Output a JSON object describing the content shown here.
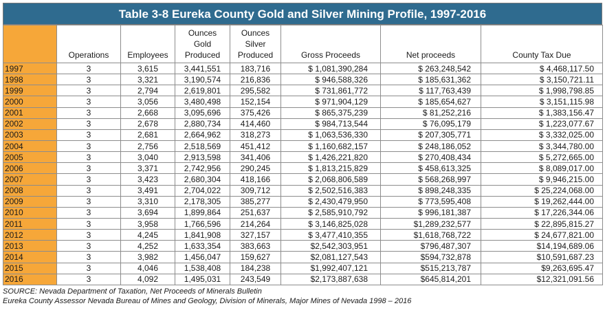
{
  "title": "Table 3-8 Eureka County Gold and Silver Mining Profile, 1997-2016",
  "columns": {
    "year": "",
    "operations": "Operations",
    "employees": "Employees",
    "gold": [
      "Ounces",
      "Gold",
      "Produced"
    ],
    "silver": [
      "Ounces",
      "Silver",
      "Produced"
    ],
    "gross": "Gross Proceeds",
    "net": "Net proceeds",
    "tax": "County Tax Due"
  },
  "rows": [
    [
      "1997",
      "3",
      "3,615",
      "3,441,551",
      "183,716",
      "$ 1,081,390,284",
      "$ 263,248,542",
      "$ 4,468,117.50"
    ],
    [
      "1998",
      "3",
      "3,321",
      "3,190,574",
      "216,836",
      "$ 946,588,326",
      "$ 185,631,362",
      "$ 3,150,721.11"
    ],
    [
      "1999",
      "3",
      "2,794",
      "2,619,801",
      "295,582",
      "$ 731,861,772",
      "$ 117,763,439",
      "$ 1,998,798.85"
    ],
    [
      "2000",
      "3",
      "3,056",
      "3,480,498",
      "152,154",
      "$ 971,904,129",
      "$ 185,654,627",
      "$ 3,151,115.98"
    ],
    [
      "2001",
      "3",
      "2,668",
      "3,095,696",
      "375,426",
      "$ 865,375,239",
      "$ 81,252,216",
      "$ 1,383,156.47"
    ],
    [
      "2002",
      "3",
      "2,678",
      "2,880,734",
      "414,460",
      "$ 984,713,544",
      "$ 76,095,179",
      "$ 1,223,077.67"
    ],
    [
      "2003",
      "3",
      "2,681",
      "2,664,962",
      "318,273",
      "$ 1,063,536,330",
      "$ 207,305,771",
      "$ 3,332,025.00"
    ],
    [
      "2004",
      "3",
      "2,756",
      "2,518,569",
      "451,412",
      "$ 1,160,682,157",
      "$ 248,186,052",
      "$ 3,344,780.00"
    ],
    [
      "2005",
      "3",
      "3,040",
      "2,913,598",
      "341,406",
      "$ 1,426,221,820",
      "$ 270,408,434",
      "$ 5,272,665.00"
    ],
    [
      "2006",
      "3",
      "3,371",
      "2,742,956",
      "290,245",
      "$ 1,813,215,829",
      "$ 458,613,325",
      "$ 8,089,017.00"
    ],
    [
      "2007",
      "3",
      "3,423",
      "2,680,304",
      "418,166",
      "$ 2,068,806,589",
      "$ 568,268,997",
      "$ 9,946,215.00"
    ],
    [
      "2008",
      "3",
      "3,491",
      "2,704,022",
      "309,712",
      "$ 2,502,516,383",
      "$ 898,248,335",
      "$ 25,224,068.00"
    ],
    [
      "2009",
      "3",
      "3,310",
      "2,178,305",
      "385,277",
      "$ 2,430,479,950",
      "$ 773,595,408",
      "$ 19,262,444.00"
    ],
    [
      "2010",
      "3",
      "3,694",
      "1,899,864",
      "251,637",
      "$ 2,585,910,792",
      "$ 996,181,387",
      "$ 17,226,344.06"
    ],
    [
      "2011",
      "3",
      "3,958",
      "1,766,596",
      "214,264",
      "$ 3,146,825,028",
      "$1,289,232,577",
      "$ 22,895,815.27"
    ],
    [
      "2012",
      "3",
      "4,245",
      "1,841,908",
      "327,157",
      "$ 3,477,410,355",
      "$1,618,768,722",
      "$ 24,677,821.00"
    ],
    [
      "2013",
      "3",
      "4,252",
      "1,633,354",
      "383,663",
      "$2,542,303,951",
      "$796,487,307",
      "$14,194,689.06"
    ],
    [
      "2014",
      "3",
      "3,982",
      "1,456,047",
      "159,627",
      "$2,081,127,543",
      "$594,732,878",
      "$10,591,687.23"
    ],
    [
      "2015",
      "3",
      "4,046",
      "1,538,408",
      "184,238",
      "$1,992,407,121",
      "$515,213,787",
      "$9,263,695.47"
    ],
    [
      "2016",
      "3",
      "4,092",
      "1,495,031",
      "243,549",
      "$2,173,887,638",
      "$645,814,201",
      "$12,321,091.56"
    ]
  ],
  "source": [
    "SOURCE: Nevada Department of Taxation, Net Proceeds of Minerals Bulletin",
    "Eureka County Assessor Nevada Bureau of Mines and Geology, Division of Minerals, Major Mines of Nevada 1998 – 2016"
  ],
  "colors": {
    "header_bg": "#2f6b8f",
    "year_bg": "#f6a739",
    "border": "#8c8c8c"
  }
}
